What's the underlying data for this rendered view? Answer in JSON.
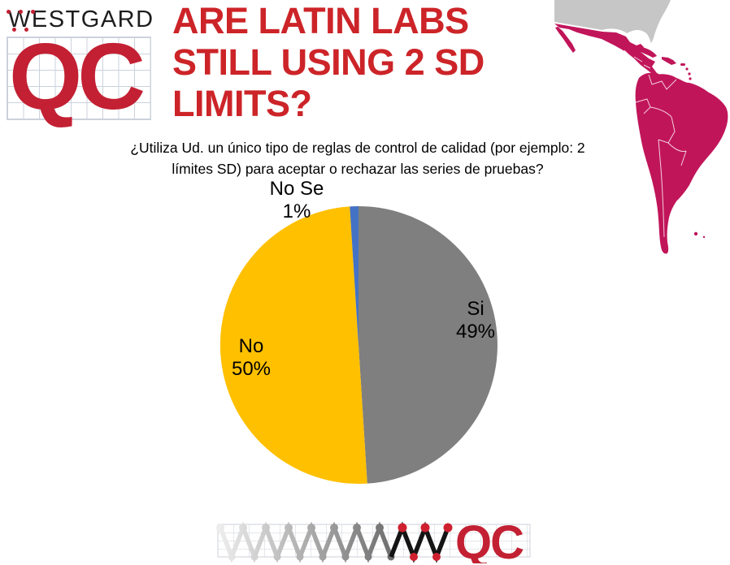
{
  "logo": {
    "wordmark": "WESTGARD",
    "qc": "QC",
    "qc_color": "#C32033"
  },
  "title": {
    "lines": [
      "ARE LATIN LABS",
      "STILL USING 2 SD",
      "LIMITS?"
    ],
    "color": "#CC2428"
  },
  "question": {
    "line1": "¿Utiliza Ud. un único tipo de reglas de control de calidad (por ejemplo: 2",
    "line2": "límites SD) para aceptar o rechazar las series de pruebas?"
  },
  "chart_data": {
    "type": "pie",
    "title": "",
    "start_angle_deg": 0,
    "direction": "clockwise",
    "legend": "none",
    "slices": [
      {
        "label": "Si",
        "value": 49,
        "display": "49%",
        "color": "#7F7F7F"
      },
      {
        "label": "No",
        "value": 50,
        "display": "50%",
        "color": "#FFC000"
      },
      {
        "label": "No Se",
        "value": 1,
        "display": "1%",
        "color": "#4472C4"
      }
    ]
  },
  "map": {
    "name": "latin-america-highlight-map",
    "highlight_color": "#C1155A",
    "muted_color": "#C6C6C6"
  },
  "footer_logo": {
    "qc": "QC",
    "qc_color": "#C32033",
    "zigzag_start_color": "#ECECEC",
    "zigzag_end_color": "#6F6F6F",
    "final_w_color": "#141414",
    "dot_color": "#CF2030"
  }
}
